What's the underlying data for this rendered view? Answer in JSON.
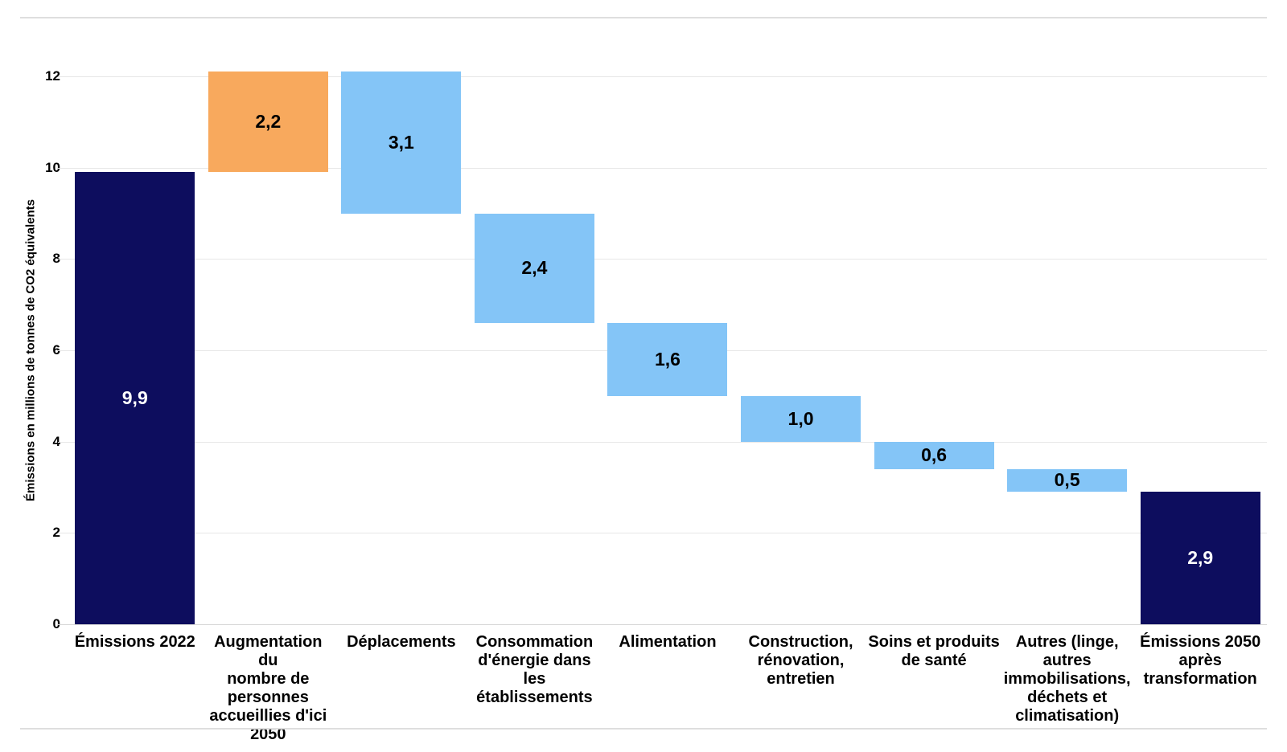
{
  "palette": {
    "navy": "#0d0d5e",
    "orange": "#f8a95d",
    "blue": "#84c5f7",
    "gridline": "#e7e7e7",
    "white_text": "#ffffff",
    "black_text": "#000000"
  },
  "chart_data": {
    "type": "bar",
    "subtype": "waterfall",
    "title": "",
    "xlabel": "",
    "ylabel": "Émissions en millions de tonnes de CO2 équivalents",
    "ylim": [
      0,
      12
    ],
    "yticks": [
      0,
      2,
      4,
      6,
      8,
      10,
      12
    ],
    "grid": true,
    "legend": false,
    "bars": [
      {
        "id": "emissions-2022",
        "label": "Émissions 2022",
        "label_lines": [
          "Émissions 2022"
        ],
        "value": 9.9,
        "value_label": "9,9",
        "start": 0,
        "end": 9.9,
        "role": "total",
        "color": "navy",
        "text_color": "#ffffff"
      },
      {
        "id": "augmentation-personnes-2050",
        "label": "Augmentation du nombre de personnes accueillies d'ici 2050",
        "label_lines": [
          "Augmentation du",
          "nombre de",
          "personnes",
          "accueillies d'ici",
          "2050"
        ],
        "value": 2.2,
        "value_label": "2,2",
        "start": 9.9,
        "end": 12.1,
        "role": "increase",
        "color": "orange",
        "text_color": "#000000"
      },
      {
        "id": "deplacements",
        "label": "Déplacements",
        "label_lines": [
          "Déplacements"
        ],
        "value": -3.1,
        "value_label": "3,1",
        "start": 12.1,
        "end": 9.0,
        "role": "decrease",
        "color": "blue",
        "text_color": "#000000"
      },
      {
        "id": "consommation-energie-etablissements",
        "label": "Consommation d'énergie dans les établissements",
        "label_lines": [
          "Consommation",
          "d'énergie dans",
          "les",
          "établissements"
        ],
        "value": -2.4,
        "value_label": "2,4",
        "start": 9.0,
        "end": 6.6,
        "role": "decrease",
        "color": "blue",
        "text_color": "#000000"
      },
      {
        "id": "alimentation",
        "label": "Alimentation",
        "label_lines": [
          "Alimentation"
        ],
        "value": -1.6,
        "value_label": "1,6",
        "start": 6.6,
        "end": 5.0,
        "role": "decrease",
        "color": "blue",
        "text_color": "#000000"
      },
      {
        "id": "construction-renovation-entretien",
        "label": "Construction, rénovation, entretien",
        "label_lines": [
          "Construction,",
          "rénovation,",
          "entretien"
        ],
        "value": -1.0,
        "value_label": "1,0",
        "start": 5.0,
        "end": 4.0,
        "role": "decrease",
        "color": "blue",
        "text_color": "#000000"
      },
      {
        "id": "soins-produits-sante",
        "label": "Soins et produits de santé",
        "label_lines": [
          "Soins et produits",
          "de santé"
        ],
        "value": -0.6,
        "value_label": "0,6",
        "start": 4.0,
        "end": 3.4,
        "role": "decrease",
        "color": "blue",
        "text_color": "#000000"
      },
      {
        "id": "autres",
        "label": "Autres (linge, autres immobilisations, déchets et climatisation)",
        "label_lines": [
          "Autres (linge,",
          "autres",
          "immobilisations,",
          "déchets et",
          "climatisation)"
        ],
        "value": -0.5,
        "value_label": "0,5",
        "start": 3.4,
        "end": 2.9,
        "role": "decrease",
        "color": "blue",
        "text_color": "#000000"
      },
      {
        "id": "emissions-2050-apres-transformation",
        "label": "Émissions 2050 après transformation",
        "label_lines": [
          "Émissions 2050",
          "après",
          "transformation"
        ],
        "value": 2.9,
        "value_label": "2,9",
        "start": 0,
        "end": 2.9,
        "role": "total",
        "color": "navy",
        "text_color": "#ffffff"
      }
    ]
  }
}
